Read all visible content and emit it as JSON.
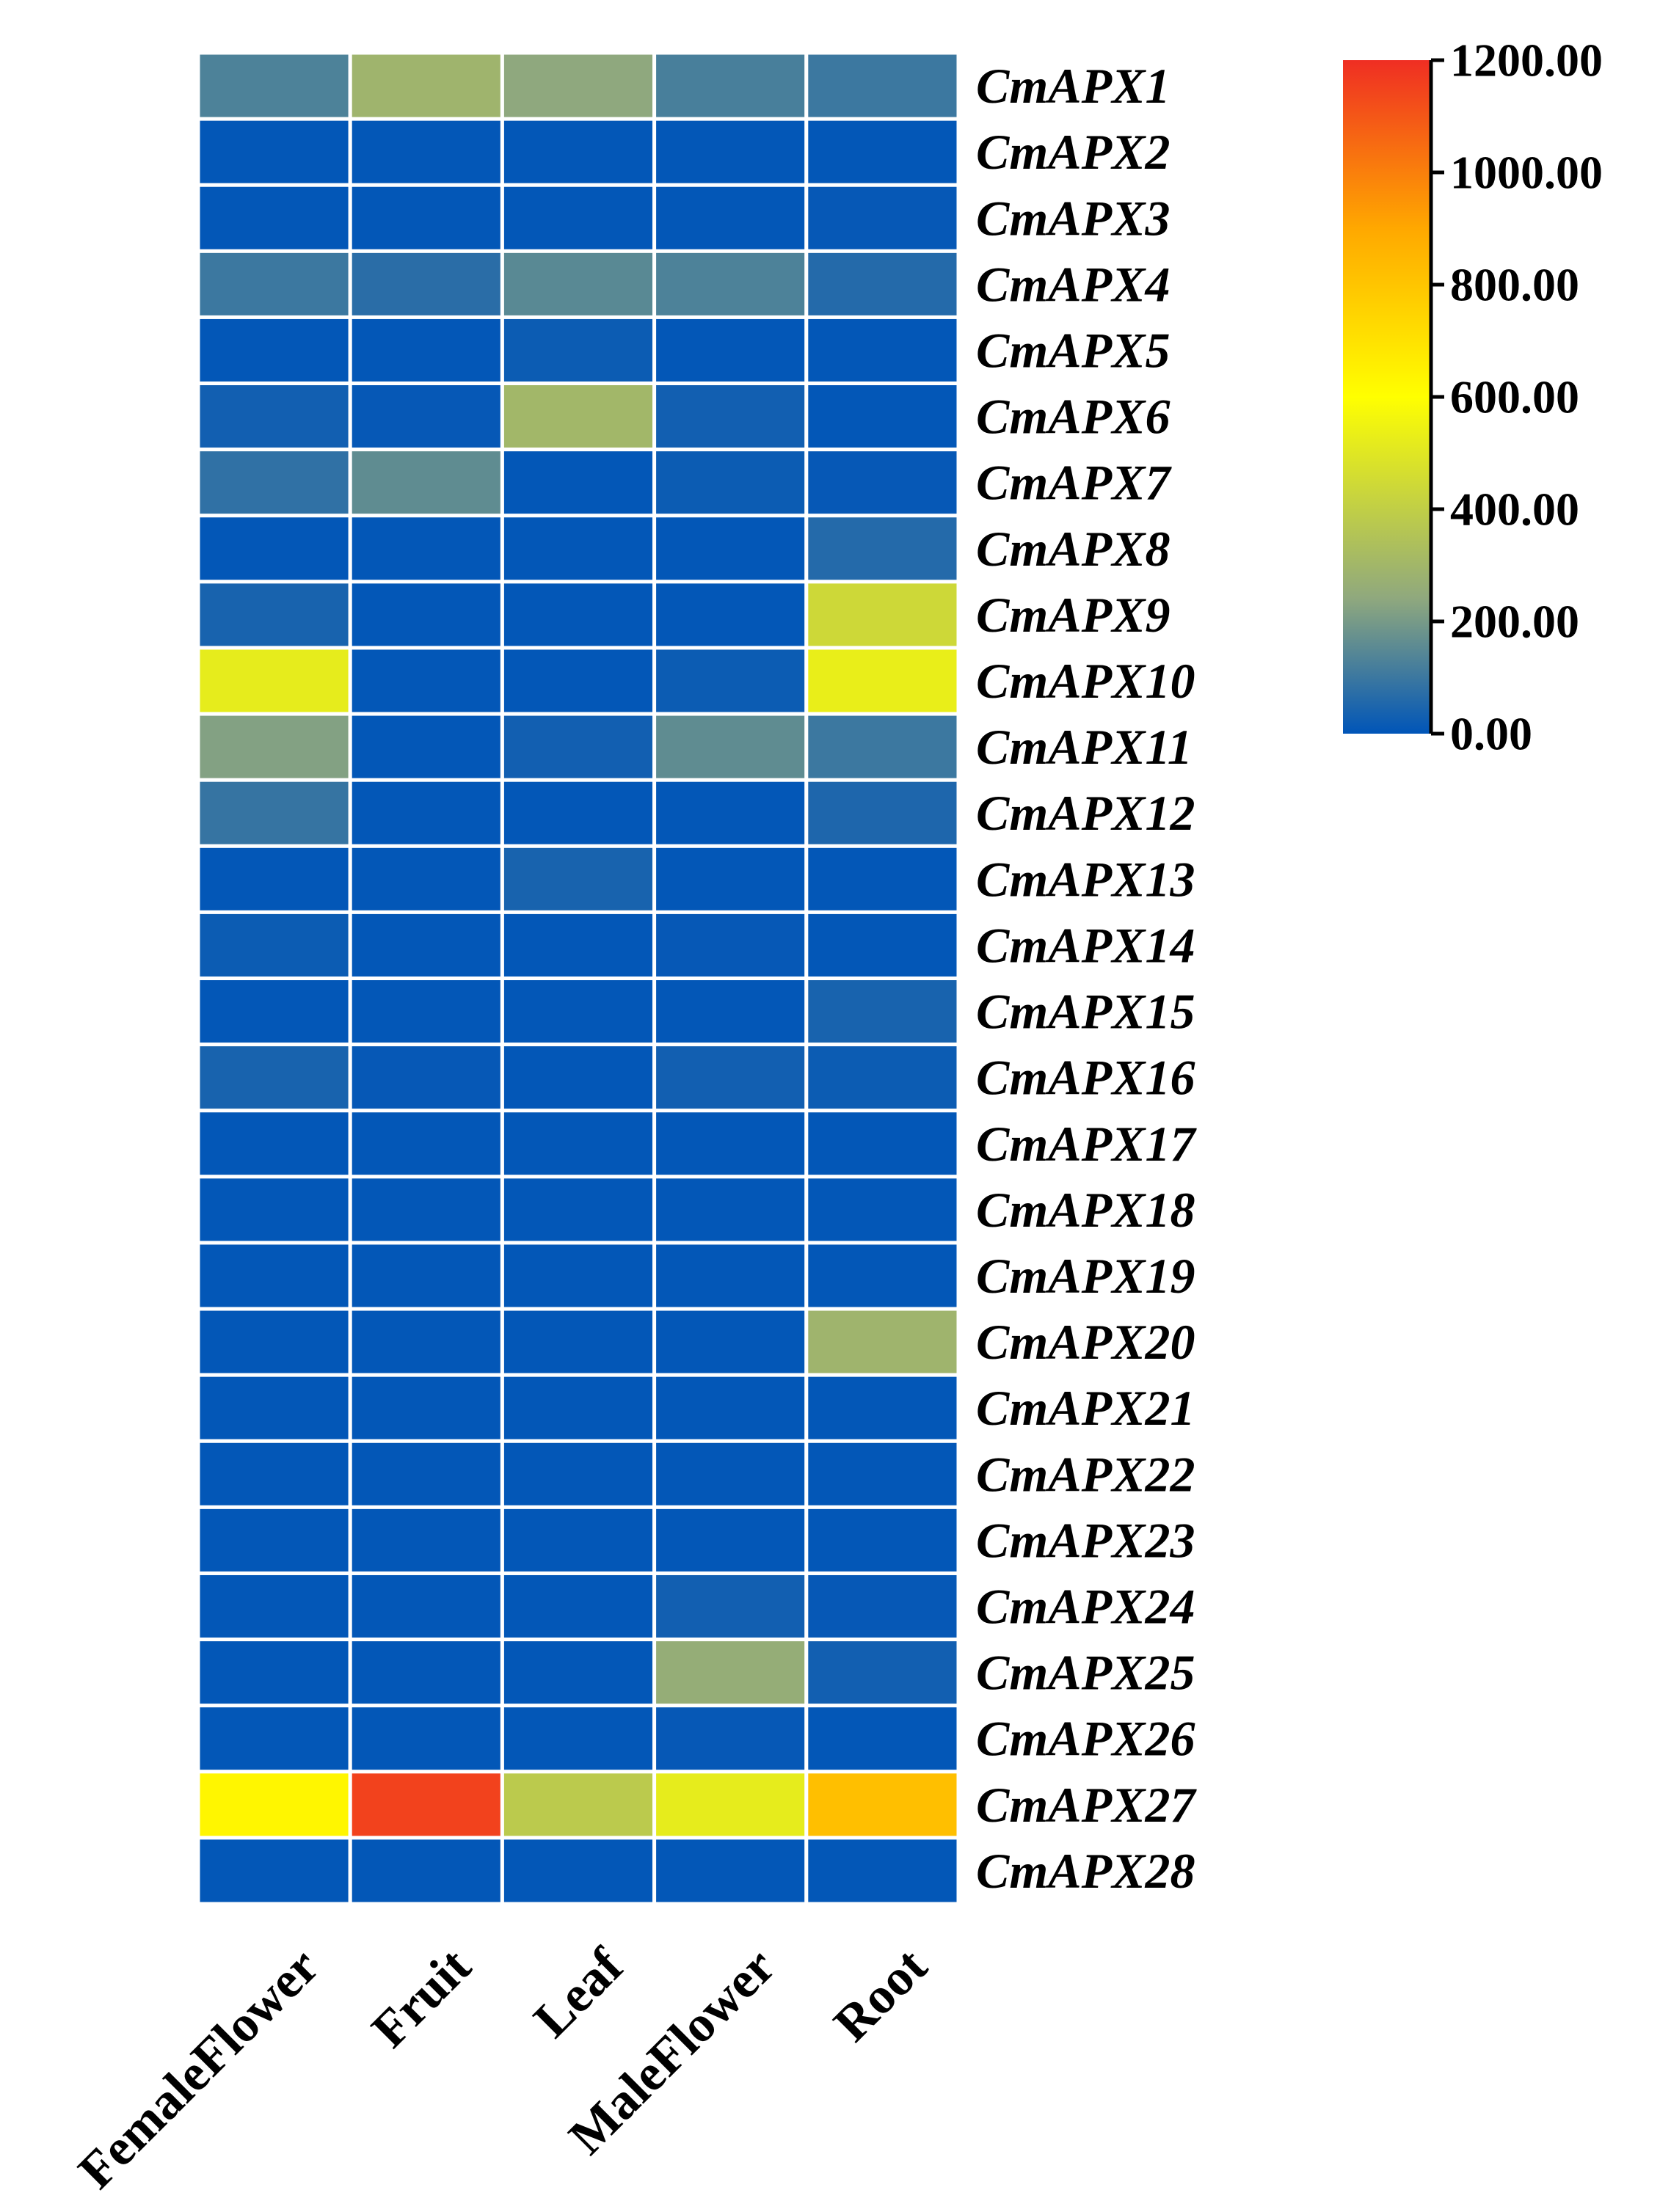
{
  "chart_data": {
    "type": "heatmap",
    "columns": [
      "FemaleFlower",
      "Fruit",
      "Leaf",
      "MaleFlower",
      "Root"
    ],
    "rows": [
      "CmAPX1",
      "CmAPX2",
      "CmAPX3",
      "CmAPX4",
      "CmAPX5",
      "CmAPX6",
      "CmAPX7",
      "CmAPX8",
      "CmAPX9",
      "CmAPX10",
      "CmAPX11",
      "CmAPX12",
      "CmAPX13",
      "CmAPX14",
      "CmAPX15",
      "CmAPX16",
      "CmAPX17",
      "CmAPX18",
      "CmAPX19",
      "CmAPX20",
      "CmAPX21",
      "CmAPX22",
      "CmAPX23",
      "CmAPX24",
      "CmAPX25",
      "CmAPX26",
      "CmAPX27",
      "CmAPX28"
    ],
    "values": [
      [
        130,
        290,
        240,
        120,
        100
      ],
      [
        5,
        5,
        5,
        5,
        5
      ],
      [
        5,
        5,
        5,
        5,
        10
      ],
      [
        100,
        70,
        150,
        130,
        60
      ],
      [
        5,
        5,
        20,
        5,
        5
      ],
      [
        30,
        10,
        300,
        30,
        5
      ],
      [
        80,
        160,
        5,
        20,
        10
      ],
      [
        5,
        5,
        5,
        5,
        60
      ],
      [
        40,
        5,
        5,
        5,
        440
      ],
      [
        520,
        5,
        5,
        20,
        530
      ],
      [
        220,
        5,
        30,
        160,
        100
      ],
      [
        90,
        5,
        5,
        5,
        50
      ],
      [
        5,
        5,
        40,
        5,
        5
      ],
      [
        20,
        5,
        5,
        10,
        5
      ],
      [
        5,
        5,
        5,
        5,
        40
      ],
      [
        40,
        10,
        5,
        30,
        20
      ],
      [
        5,
        5,
        5,
        5,
        5
      ],
      [
        5,
        5,
        5,
        5,
        5
      ],
      [
        5,
        5,
        5,
        5,
        5
      ],
      [
        5,
        5,
        5,
        5,
        290
      ],
      [
        5,
        5,
        5,
        5,
        5
      ],
      [
        5,
        5,
        5,
        5,
        5
      ],
      [
        5,
        5,
        5,
        5,
        5
      ],
      [
        5,
        5,
        5,
        30,
        10
      ],
      [
        5,
        5,
        5,
        260,
        30
      ],
      [
        5,
        5,
        5,
        10,
        5
      ],
      [
        630,
        1150,
        380,
        520,
        820
      ],
      [
        5,
        5,
        5,
        5,
        5
      ]
    ],
    "colorbar": {
      "min": 0,
      "max": 1200,
      "ticks": [
        0,
        200,
        400,
        600,
        800,
        1000,
        1200
      ],
      "tick_labels": [
        "0.00",
        "200.00",
        "400.00",
        "600.00",
        "800.00",
        "1000.00",
        "1200.00"
      ]
    },
    "colormap": [
      {
        "value": 0,
        "color": "#0055b8"
      },
      {
        "value": 240,
        "color": "#8fa87e"
      },
      {
        "value": 600,
        "color": "#ffff00"
      },
      {
        "value": 900,
        "color": "#ffa800"
      },
      {
        "value": 1200,
        "color": "#ef2e23"
      }
    ],
    "cell_border_color": "#ffffff"
  }
}
